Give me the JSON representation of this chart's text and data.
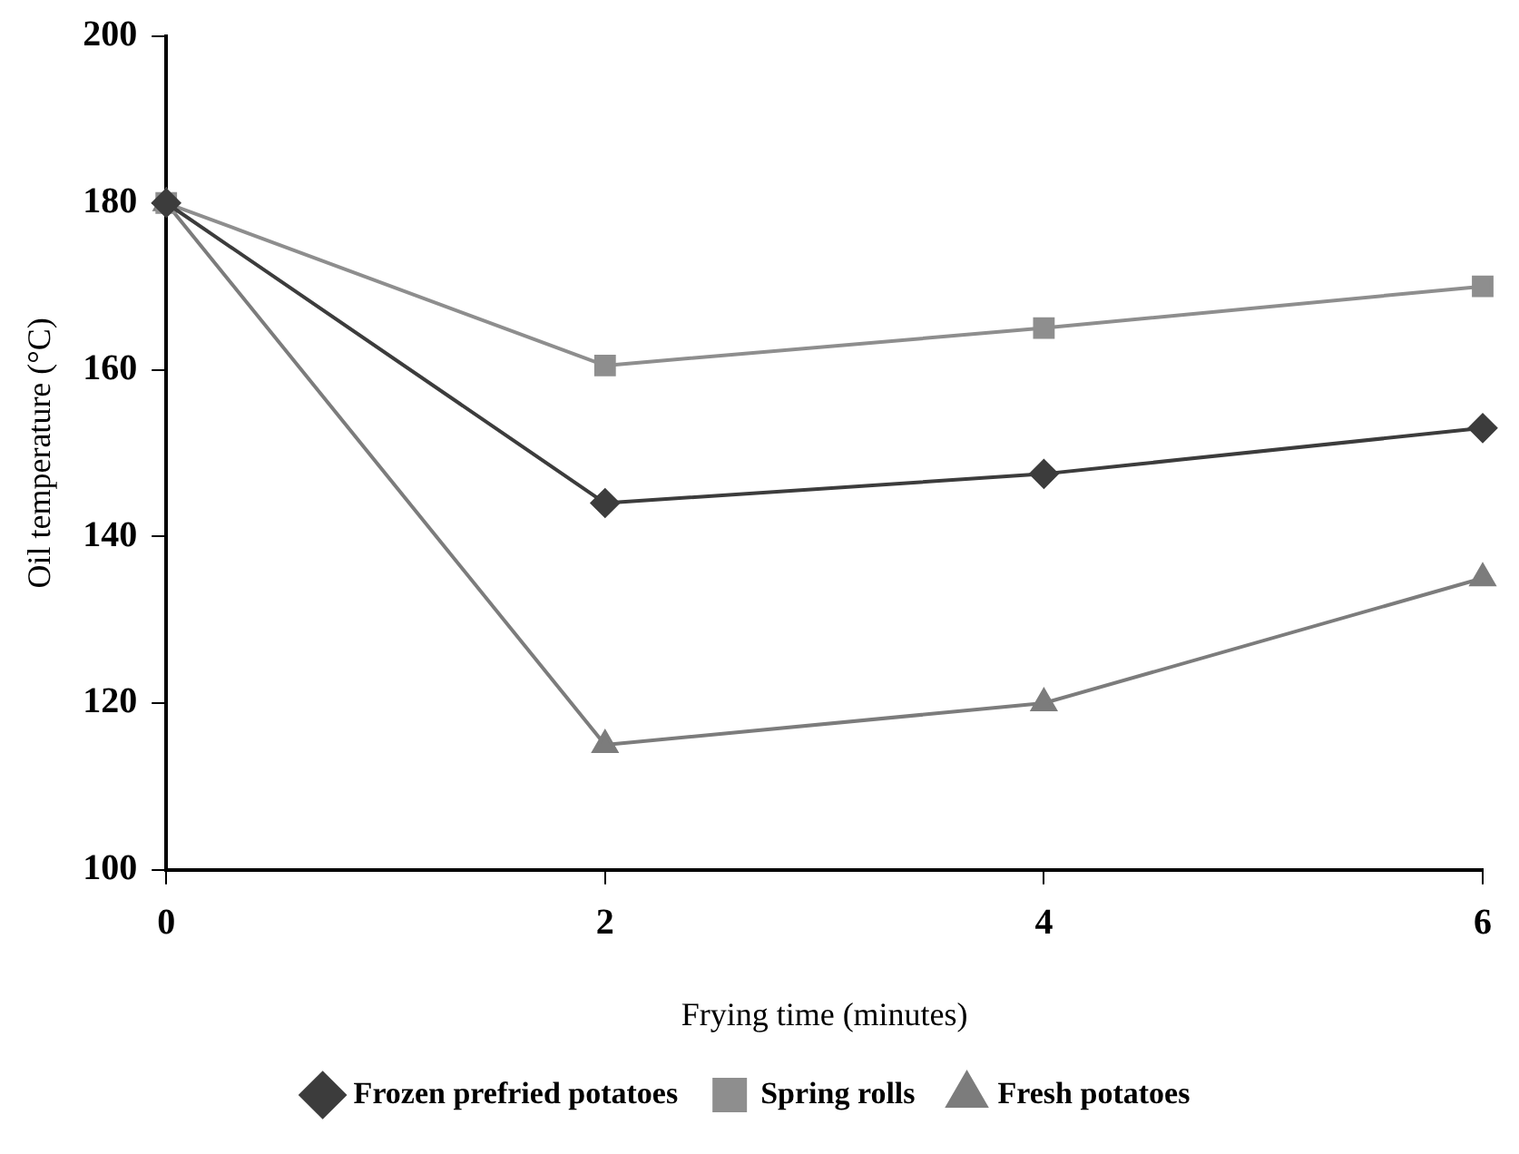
{
  "chart_data": {
    "type": "line",
    "xlabel": "Frying time (minutes)",
    "ylabel": "Oil temperature (°C)",
    "x": [
      0,
      2,
      4,
      6
    ],
    "xlim": [
      0,
      6
    ],
    "xticks": [
      0,
      2,
      4,
      6
    ],
    "ylim": [
      100,
      200
    ],
    "yticks": [
      100,
      120,
      140,
      160,
      180,
      200
    ],
    "grid": false,
    "legend": "bottom",
    "series": [
      {
        "name": "Frozen prefried potatoes",
        "color": "#3c3c3c",
        "marker": "diamond",
        "values": [
          180,
          144,
          147.5,
          153
        ]
      },
      {
        "name": "Spring rolls",
        "color": "#8e8e8e",
        "marker": "square",
        "values": [
          180,
          160.5,
          165,
          170
        ]
      },
      {
        "name": "Fresh potatoes",
        "color": "#7c7c7c",
        "marker": "triangle",
        "values": [
          180,
          115,
          120,
          135
        ]
      }
    ]
  }
}
